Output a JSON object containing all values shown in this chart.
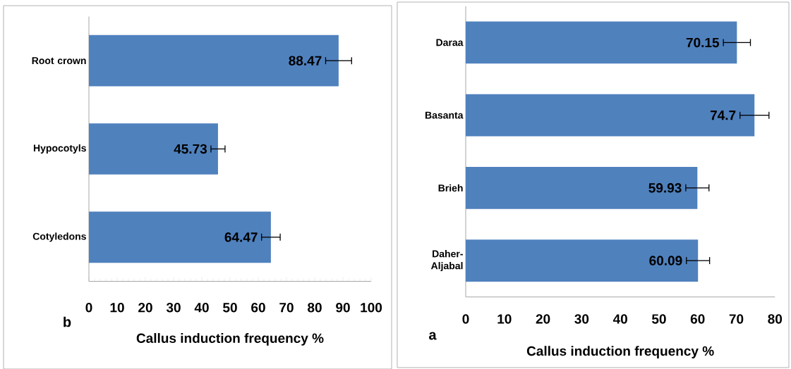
{
  "chart_data": [
    {
      "type": "bar",
      "orientation": "horizontal",
      "categories": [
        "Root crown",
        "Hypocotyls",
        "Cotyledons"
      ],
      "values": [
        88.47,
        45.73,
        64.47
      ],
      "errors": [
        4.6,
        2.5,
        3.3
      ],
      "color": "#4f81bd",
      "xlim": [
        0,
        100
      ],
      "xticks": [
        0,
        10,
        20,
        30,
        40,
        50,
        60,
        70,
        80,
        90,
        100
      ],
      "xlabel": "Callus induction frequency %",
      "data_labels": true,
      "annotations": [
        "b"
      ]
    },
    {
      "type": "bar",
      "orientation": "horizontal",
      "categories": [
        "Daraa",
        "Basanta",
        "Brieh",
        "Daher-Aljabal"
      ],
      "values": [
        70.15,
        74.7,
        59.93,
        60.09
      ],
      "errors": [
        3.5,
        3.75,
        3.0,
        3.0
      ],
      "color": "#4f81bd",
      "xlim": [
        0,
        80
      ],
      "xticks": [
        0,
        10,
        20,
        30,
        40,
        50,
        60,
        70,
        80
      ],
      "xlabel": "Callus induction frequency %",
      "data_labels": true,
      "annotations": [
        "a"
      ]
    }
  ]
}
